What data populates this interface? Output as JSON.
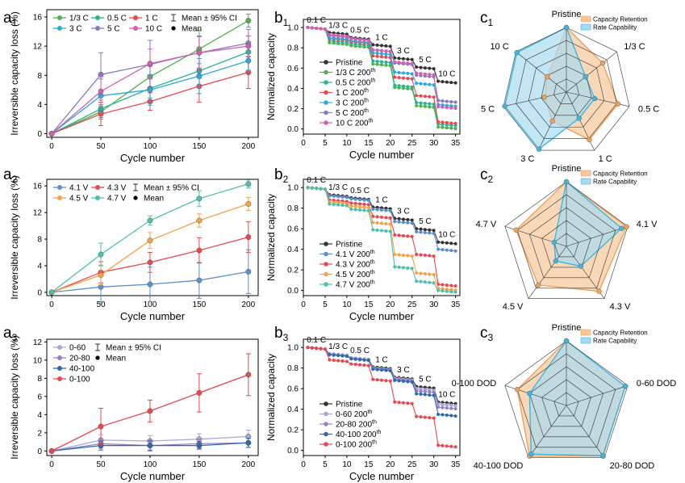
{
  "figure": {
    "panel_labels": [
      {
        "letter": "a",
        "sub": "1"
      },
      {
        "letter": "b",
        "sub": "1"
      },
      {
        "letter": "c",
        "sub": "1"
      },
      {
        "letter": "a",
        "sub": "2"
      },
      {
        "letter": "b",
        "sub": "2"
      },
      {
        "letter": "c",
        "sub": "2"
      },
      {
        "letter": "a",
        "sub": "3"
      },
      {
        "letter": "b",
        "sub": "3"
      },
      {
        "letter": "c",
        "sub": "3"
      }
    ]
  },
  "chart_data": [
    {
      "id": "a1",
      "type": "line",
      "xlabel": "Cycle number",
      "ylabel": "Irreversible capacity loss (%)",
      "xlim": [
        -5,
        210
      ],
      "ylim": [
        -0.5,
        17
      ],
      "xticks": [
        0,
        50,
        100,
        150,
        200
      ],
      "yticks": [
        0,
        4,
        8,
        12,
        16
      ],
      "x": [
        0,
        50,
        100,
        150,
        200
      ],
      "legend_mean_ci": "Mean ± 95% CI",
      "legend_mean": "Mean",
      "series": [
        {
          "name": "1/3 C",
          "color": "#4fb34d",
          "values": [
            0,
            3.0,
            7.8,
            11.6,
            15.5
          ],
          "ci": [
            0,
            1.0,
            1.6,
            2.6,
            0.9
          ]
        },
        {
          "name": "0.5 C",
          "color": "#2bb48f",
          "values": [
            0,
            3.4,
            6.2,
            8.6,
            11.2
          ],
          "ci": [
            0,
            1.2,
            1.3,
            1.0,
            1.2
          ]
        },
        {
          "name": "1 C",
          "color": "#e8484e",
          "values": [
            0,
            2.7,
            4.4,
            6.5,
            8.4
          ],
          "ci": [
            0,
            1.6,
            1.2,
            2.2,
            2.2
          ]
        },
        {
          "name": "3 C",
          "color": "#27a9e1",
          "values": [
            0,
            5.2,
            6.0,
            7.9,
            10.0
          ],
          "ci": [
            0,
            2.3,
            2.1,
            2.4,
            1.3
          ]
        },
        {
          "name": "5 C",
          "color": "#8579c2",
          "values": [
            0,
            8.1,
            9.5,
            11.1,
            12.4
          ],
          "ci": [
            0,
            3.0,
            3.3,
            2.3,
            1.9
          ]
        },
        {
          "name": "10 C",
          "color": "#d45fb1",
          "values": [
            0,
            5.8,
            9.6,
            11.1,
            12.0
          ],
          "ci": [
            0,
            2.0,
            2.0,
            2.2,
            1.4
          ]
        }
      ]
    },
    {
      "id": "b1",
      "type": "line",
      "xlabel": "Cycle number",
      "ylabel": "Normalized capacity",
      "xlim": [
        0,
        36
      ],
      "ylim": [
        -0.05,
        1.08
      ],
      "xticks": [
        0,
        5,
        10,
        15,
        20,
        25,
        30,
        35
      ],
      "yticks": [
        0.0,
        0.2,
        0.4,
        0.6,
        0.8,
        1.0
      ],
      "rate_labels": [
        "0.1 C",
        "1/3 C",
        "0.5 C",
        "1 C",
        "3 C",
        "5 C",
        "10 C"
      ],
      "legend_suffix": "200",
      "legend_sup": "th",
      "series": [
        {
          "name": "Pristine",
          "color": "#333333",
          "steps": [
            1.0,
            0.95,
            0.9,
            0.83,
            0.7,
            0.61,
            0.47
          ]
        },
        {
          "name": "1/3 C",
          "color": "#4fb34d",
          "steps": [
            1.0,
            0.85,
            0.82,
            0.64,
            0.41,
            0.23,
            0.02
          ]
        },
        {
          "name": "0.5 C",
          "color": "#2bb48f",
          "steps": [
            1.0,
            0.87,
            0.84,
            0.67,
            0.43,
            0.26,
            0.05
          ]
        },
        {
          "name": "1 C",
          "color": "#e8484e",
          "steps": [
            1.0,
            0.89,
            0.86,
            0.72,
            0.51,
            0.33,
            0.07
          ]
        },
        {
          "name": "3 C",
          "color": "#27a9e1",
          "steps": [
            1.0,
            0.9,
            0.87,
            0.75,
            0.56,
            0.45,
            0.24
          ]
        },
        {
          "name": "5 C",
          "color": "#8579c2",
          "steps": [
            1.0,
            0.92,
            0.89,
            0.78,
            0.65,
            0.53,
            0.28
          ]
        },
        {
          "name": "10 C",
          "color": "#d45fb1",
          "steps": [
            1.0,
            0.93,
            0.89,
            0.78,
            0.66,
            0.55,
            0.22
          ]
        }
      ]
    },
    {
      "id": "c1",
      "type": "radar",
      "axes": [
        "Pristine",
        "1/3 C",
        "0.5 C",
        "1 C",
        "3 C",
        "5 C",
        "10 C"
      ],
      "series": [
        {
          "name": "Capacity Retention",
          "color": "#f0a058",
          "fill": "#f6c89a",
          "values": [
            1.0,
            0.72,
            0.82,
            0.82,
            0.5,
            0.35,
            0.38
          ]
        },
        {
          "name": "Rate Capability",
          "color": "#3fb6e0",
          "fill": "#a8dcf0",
          "values": [
            1.0,
            0.38,
            0.45,
            0.45,
            0.98,
            0.98,
            0.98
          ]
        }
      ]
    },
    {
      "id": "a2",
      "type": "line",
      "xlabel": "Cycle number",
      "ylabel": "Irreversible capacity loss (%)",
      "xlim": [
        -5,
        210
      ],
      "ylim": [
        -0.5,
        17
      ],
      "xticks": [
        0,
        50,
        100,
        150,
        200
      ],
      "yticks": [
        0,
        4,
        8,
        12,
        16
      ],
      "x": [
        0,
        50,
        100,
        150,
        200
      ],
      "legend_mean_ci": "Mean ± 95% CI",
      "legend_mean": "Mean",
      "series": [
        {
          "name": "4.1 V",
          "color": "#5a8fd0",
          "values": [
            0,
            0.8,
            1.2,
            1.8,
            3.1
          ],
          "ci": [
            0,
            2.4,
            2.6,
            2.7,
            3.3
          ]
        },
        {
          "name": "4.3 V",
          "color": "#e8484e",
          "values": [
            0,
            3.0,
            4.5,
            6.3,
            8.3
          ],
          "ci": [
            0,
            1.6,
            1.5,
            1.9,
            2.3
          ]
        },
        {
          "name": "4.5 V",
          "color": "#f5a343",
          "values": [
            0,
            2.6,
            7.8,
            10.8,
            13.3
          ],
          "ci": [
            0,
            1.5,
            1.2,
            1.0,
            1.0
          ]
        },
        {
          "name": "4.7 V",
          "color": "#4dbfad",
          "values": [
            0,
            5.7,
            10.8,
            14.1,
            16.3
          ],
          "ci": [
            0,
            1.7,
            0.7,
            1.2,
            0.6
          ]
        }
      ]
    },
    {
      "id": "b2",
      "type": "line",
      "xlabel": "Cycle number",
      "ylabel": "Normalized capacity",
      "xlim": [
        0,
        36
      ],
      "ylim": [
        -0.05,
        1.08
      ],
      "xticks": [
        0,
        5,
        10,
        15,
        20,
        25,
        30,
        35
      ],
      "yticks": [
        0.0,
        0.2,
        0.4,
        0.6,
        0.8,
        1.0
      ],
      "rate_labels": [
        "0.1 C",
        "1/3 C",
        "0.5 C",
        "1 C",
        "3 C",
        "5 C",
        "10 C"
      ],
      "legend_suffix": "200",
      "legend_sup": "th",
      "series": [
        {
          "name": "Pristine",
          "color": "#333333",
          "steps": [
            1.0,
            0.93,
            0.9,
            0.81,
            0.7,
            0.6,
            0.47
          ]
        },
        {
          "name": "4.1 V",
          "color": "#5a8fd0",
          "steps": [
            1.0,
            0.92,
            0.89,
            0.79,
            0.67,
            0.57,
            0.4
          ]
        },
        {
          "name": "4.3 V",
          "color": "#e8484e",
          "steps": [
            1.0,
            0.88,
            0.85,
            0.72,
            0.54,
            0.35,
            0.06
          ]
        },
        {
          "name": "4.5 V",
          "color": "#f5a343",
          "steps": [
            1.0,
            0.86,
            0.82,
            0.66,
            0.35,
            0.17,
            0.02
          ]
        },
        {
          "name": "4.7 V",
          "color": "#4dbfad",
          "steps": [
            1.0,
            0.84,
            0.79,
            0.59,
            0.23,
            0.09,
            0.0
          ]
        }
      ]
    },
    {
      "id": "c2",
      "type": "radar",
      "axes": [
        "Pristine",
        "4.1 V",
        "4.3 V",
        "4.5 V",
        "4.7 V"
      ],
      "series": [
        {
          "name": "Capacity Retention",
          "color": "#f0a058",
          "fill": "#f6c89a",
          "values": [
            1.0,
            0.98,
            0.86,
            0.74,
            0.82
          ]
        },
        {
          "name": "Rate Capability",
          "color": "#3fb6e0",
          "fill": "#a8dcf0",
          "values": [
            1.0,
            0.9,
            0.38,
            0.28,
            0.2
          ]
        }
      ]
    },
    {
      "id": "a3",
      "type": "line",
      "xlabel": "Cycle number",
      "ylabel": "Irreversible capacity loss (%)",
      "xlim": [
        -5,
        210
      ],
      "ylim": [
        -0.5,
        12.3
      ],
      "xticks": [
        0,
        50,
        100,
        150,
        200
      ],
      "yticks": [
        0,
        2,
        4,
        6,
        8,
        10,
        12
      ],
      "x": [
        0,
        50,
        100,
        150,
        200
      ],
      "legend_mean_ci": "Mean ± 95% CI",
      "legend_mean": "Mean",
      "series": [
        {
          "name": "0-60",
          "color": "#a6a6d8",
          "values": [
            0,
            1.2,
            1.1,
            1.3,
            1.6
          ],
          "ci": [
            0,
            0.6,
            0.6,
            0.6,
            0.7
          ]
        },
        {
          "name": "20-80",
          "color": "#9b7ccb",
          "values": [
            0,
            0.8,
            0.6,
            0.8,
            0.9
          ],
          "ci": [
            0,
            0.5,
            0.6,
            0.5,
            0.5
          ]
        },
        {
          "name": "40-100",
          "color": "#2c6ab0",
          "values": [
            0,
            0.6,
            0.6,
            0.6,
            0.9
          ],
          "ci": [
            0,
            0.5,
            0.5,
            0.4,
            0.5
          ]
        },
        {
          "name": "0-100",
          "color": "#e8484e",
          "values": [
            0,
            2.7,
            4.4,
            6.4,
            8.4
          ],
          "ci": [
            0,
            2.0,
            1.2,
            2.1,
            2.3
          ]
        }
      ]
    },
    {
      "id": "b3",
      "type": "line",
      "xlabel": "Cycle number",
      "ylabel": "Normalized capacity",
      "xlim": [
        0,
        36
      ],
      "ylim": [
        -0.05,
        1.08
      ],
      "xticks": [
        0,
        5,
        10,
        15,
        20,
        25,
        30,
        35
      ],
      "yticks": [
        0.0,
        0.2,
        0.4,
        0.6,
        0.8,
        1.0
      ],
      "rate_labels": [
        "0.1 C",
        "1/3 C",
        "0.5 C",
        "1 C",
        "3 C",
        "5 C",
        "10 C"
      ],
      "legend_suffix": "200",
      "legend_sup": "th",
      "series": [
        {
          "name": "Pristine",
          "color": "#333333",
          "steps": [
            1.0,
            0.94,
            0.9,
            0.81,
            0.71,
            0.62,
            0.47
          ]
        },
        {
          "name": "0-60",
          "color": "#a6a6d8",
          "steps": [
            1.0,
            0.94,
            0.9,
            0.8,
            0.7,
            0.6,
            0.45
          ]
        },
        {
          "name": "20-80",
          "color": "#9b7ccb",
          "steps": [
            1.0,
            0.93,
            0.89,
            0.79,
            0.69,
            0.58,
            0.42
          ]
        },
        {
          "name": "40-100",
          "color": "#2c6ab0",
          "steps": [
            1.0,
            0.93,
            0.89,
            0.79,
            0.68,
            0.55,
            0.35
          ]
        },
        {
          "name": "0-100",
          "color": "#e8484e",
          "steps": [
            1.0,
            0.88,
            0.84,
            0.69,
            0.47,
            0.33,
            0.05
          ]
        }
      ]
    },
    {
      "id": "c3",
      "type": "radar",
      "axes": [
        "Pristine",
        "0-60 DOD",
        "20-80 DOD",
        "40-100 DOD",
        "0-100 DOD"
      ],
      "series": [
        {
          "name": "Capacity Retention",
          "color": "#f0a058",
          "fill": "#f6c89a",
          "values": [
            1.0,
            0.96,
            0.97,
            0.97,
            0.8
          ]
        },
        {
          "name": "Rate Capability",
          "color": "#3fb6e0",
          "fill": "#a8dcf0",
          "values": [
            1.0,
            0.96,
            0.96,
            0.93,
            0.6
          ]
        }
      ]
    }
  ]
}
